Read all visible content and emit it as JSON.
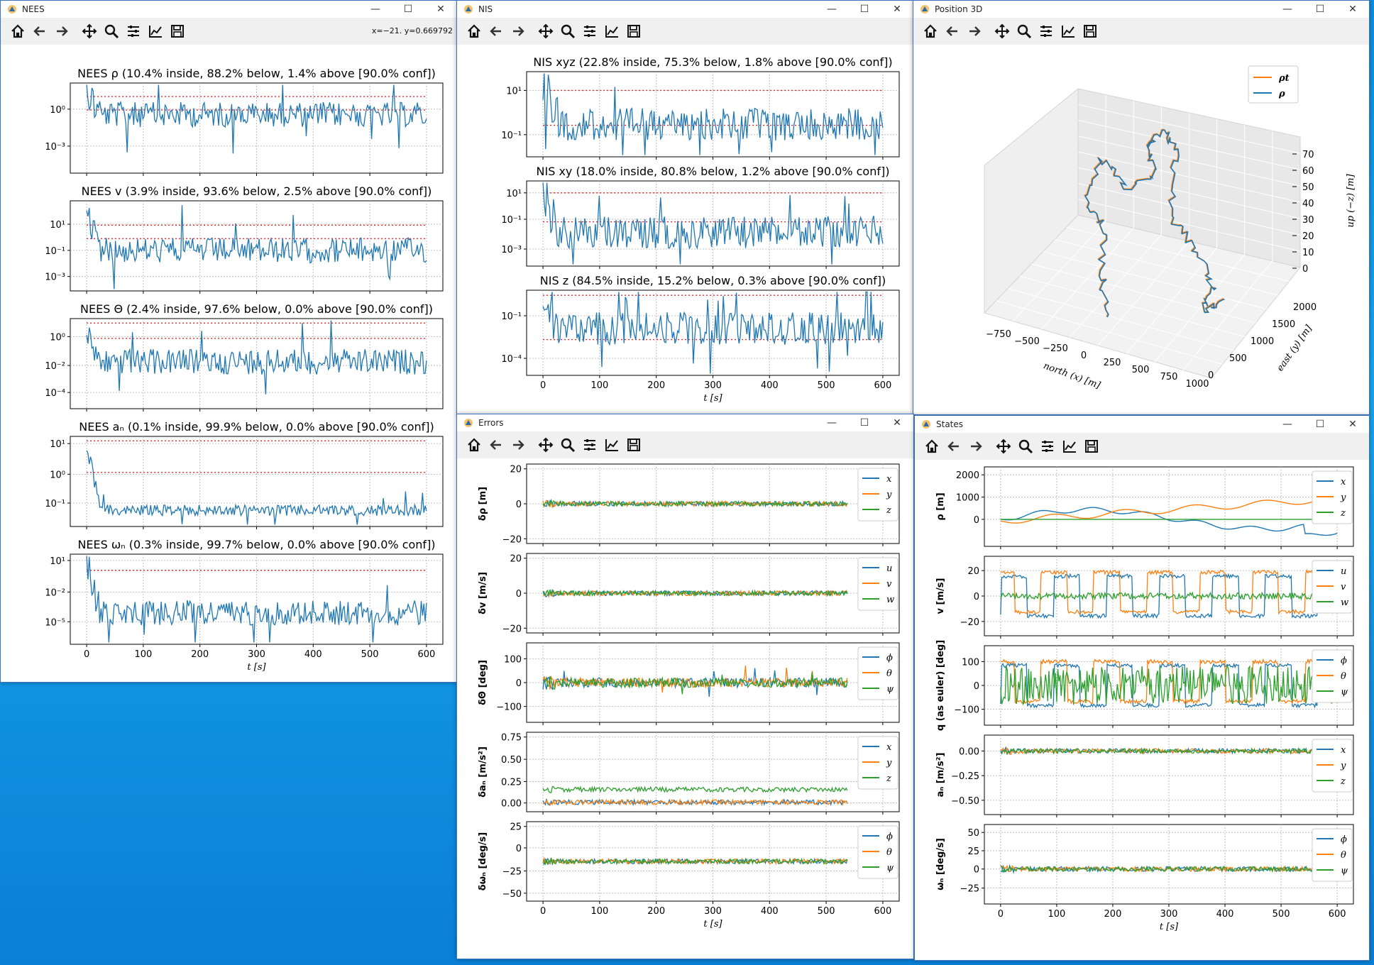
{
  "colors": {
    "blue": "#1f77b4",
    "orange": "#ff7f0e",
    "green": "#2ca02c",
    "red": "#d62728",
    "desktop": "#0b8fe0"
  },
  "toolbar_icons": [
    "home-icon",
    "back-icon",
    "forward-icon",
    "pan-icon",
    "zoom-icon",
    "configure-subplots-icon",
    "edit-axis-icon",
    "save-icon"
  ],
  "windows": {
    "nees": {
      "title": "NEES",
      "coords": "x=−21. y=0.669792",
      "xlabel": "t [s]",
      "xticks": [
        "0",
        "100",
        "200",
        "300",
        "400",
        "500",
        "600"
      ],
      "panels": [
        {
          "title": "NEES ρ (10.4% inside,  88.2% below, 1.4% above [90.0% conf])",
          "yticks": [
            "10⁰",
            "10⁻³"
          ]
        },
        {
          "title": "NEES v (3.9% inside,  93.6% below, 2.5% above [90.0% conf])",
          "yticks": [
            "10¹",
            "10⁻¹",
            "10⁻³"
          ]
        },
        {
          "title": "NEES Θ (2.4% inside,  97.6% below, 0.0% above [90.0% conf])",
          "yticks": [
            "10⁰",
            "10⁻²",
            "10⁻⁴"
          ]
        },
        {
          "title": "NEES aₙ (0.1% inside,  99.9% below, 0.0% above [90.0% conf])",
          "yticks": [
            "10¹",
            "10⁰",
            "10⁻¹"
          ]
        },
        {
          "title": "NEES ωₙ (0.3% inside,  99.7% below, 0.0% above [90.0% conf])",
          "yticks": [
            "10¹",
            "10⁻²",
            "10⁻⁵"
          ]
        }
      ]
    },
    "nis": {
      "title": "NIS",
      "xlabel": "t [s]",
      "xticks": [
        "0",
        "100",
        "200",
        "300",
        "400",
        "500",
        "600"
      ],
      "panels": [
        {
          "title": "NIS xyz (22.8% inside, 75.3% below, 1.8% above  [90.0% conf])",
          "yticks": [
            "10¹",
            "10⁻¹"
          ]
        },
        {
          "title": "NIS xy (18.0% inside, 80.8% below, 1.2% above  [90.0% conf])",
          "yticks": [
            "10¹",
            "10⁻¹",
            "10⁻³"
          ]
        },
        {
          "title": "NIS z (84.5% inside, 15.2% below, 0.3% above  [90.0% conf])",
          "yticks": [
            "10⁻¹",
            "10⁻⁴"
          ]
        }
      ]
    },
    "pos3d": {
      "title": "Position 3D",
      "legend": [
        "ρt",
        "ρ"
      ],
      "xlabel": "north (x) [m]",
      "ylabel": "east (y) [m]",
      "zlabel": "up (−z) [m]",
      "xticks": [
        "−750",
        "−500",
        "−250",
        "0",
        "250",
        "500",
        "750",
        "1000"
      ],
      "yticks": [
        "0",
        "500",
        "1000",
        "1500",
        "2000"
      ],
      "zticks": [
        "0",
        "10",
        "20",
        "30",
        "40",
        "50",
        "60",
        "70"
      ]
    },
    "errors": {
      "title": "Errors",
      "xlabel": "t [s]",
      "xticks": [
        "0",
        "100",
        "200",
        "300",
        "400",
        "500",
        "600"
      ],
      "panels": [
        {
          "ylabel": "δρ [m]",
          "yticks": [
            "20",
            "0",
            "−20"
          ],
          "legend": [
            "x",
            "y",
            "z"
          ]
        },
        {
          "ylabel": "δv [m/s]",
          "yticks": [
            "20",
            "0",
            "−20"
          ],
          "legend": [
            "u",
            "v",
            "w"
          ]
        },
        {
          "ylabel": "δΘ [deg]",
          "yticks": [
            "100",
            "0",
            "−100"
          ],
          "legend": [
            "ϕ",
            "θ",
            "ψ"
          ]
        },
        {
          "ylabel": "δaₙ [m/s²]",
          "yticks": [
            "0.75",
            "0.50",
            "0.25",
            "0.00"
          ],
          "legend": [
            "x",
            "y",
            "z"
          ]
        },
        {
          "ylabel": "δωₙ [deg/s]",
          "yticks": [
            "25",
            "0",
            "−25",
            "−50"
          ],
          "legend": [
            "ϕ",
            "θ",
            "ψ"
          ]
        }
      ]
    },
    "states": {
      "title": "States",
      "xlabel": "t [s]",
      "xticks": [
        "0",
        "100",
        "200",
        "300",
        "400",
        "500",
        "600"
      ],
      "panels": [
        {
          "ylabel": "ρ [m]",
          "yticks": [
            "2000",
            "1000",
            "0"
          ],
          "legend": [
            "x",
            "y",
            "z"
          ]
        },
        {
          "ylabel": "v [m/s]",
          "yticks": [
            "20",
            "0",
            "−20"
          ],
          "legend": [
            "u",
            "v",
            "w"
          ]
        },
        {
          "ylabel": "q (as euler) [deg]",
          "yticks": [
            "100",
            "0",
            "−100"
          ],
          "legend": [
            "ϕ",
            "θ",
            "ψ"
          ]
        },
        {
          "ylabel": "aₙ [m/s²]",
          "yticks": [
            "0.00",
            "−0.25",
            "−0.50"
          ],
          "legend": [
            "x",
            "y",
            "z"
          ]
        },
        {
          "ylabel": "ωₙ [deg/s]",
          "yticks": [
            "50",
            "25",
            "0",
            "−25"
          ],
          "legend": [
            "ϕ",
            "θ",
            "ψ"
          ]
        }
      ]
    }
  }
}
